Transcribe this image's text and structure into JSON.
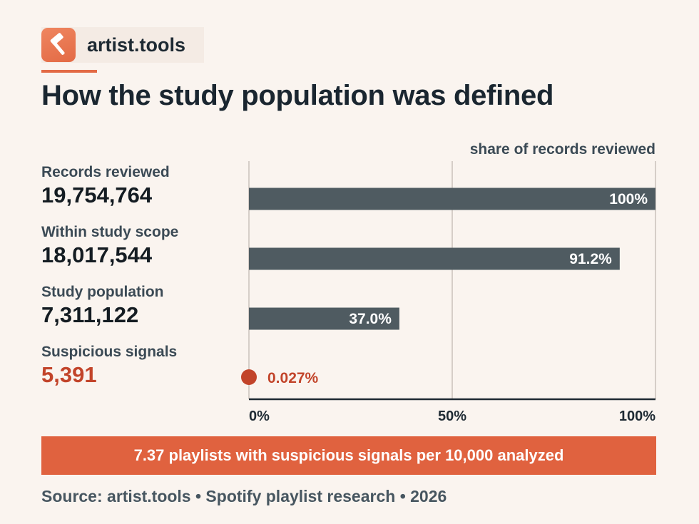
{
  "brand": {
    "name": "artist.tools",
    "logo_icon": "hammer-icon",
    "accent": "#e36a45"
  },
  "title": "How the study population was defined",
  "rows": [
    {
      "label": "Records reviewed",
      "value": "19,754,764"
    },
    {
      "label": "Within study scope",
      "value": "18,017,544"
    },
    {
      "label": "Study population",
      "value": "7,311,122"
    },
    {
      "label": "Suspicious signals",
      "value": "5,391",
      "accent": true
    }
  ],
  "chart_data": {
    "type": "bar",
    "orientation": "horizontal",
    "title": "share of records reviewed",
    "categories": [
      "Records reviewed",
      "Within study scope",
      "Study population",
      "Suspicious signals"
    ],
    "values": [
      100,
      91.2,
      37.0,
      0.027
    ],
    "data_labels": [
      "100%",
      "91.2%",
      "37.0%",
      "0.027%"
    ],
    "xlim": [
      0,
      100
    ],
    "xticks": [
      0,
      50,
      100
    ],
    "xtick_labels": [
      "0%",
      "50%",
      "100%"
    ],
    "grid": true,
    "bar_color": "#4f5b61",
    "highlight_color": "#c2442a",
    "highlight_marker": "dot"
  },
  "banner": {
    "text": "7.37 playlists with suspicious signals per 10,000 analyzed",
    "color": "#e0623f"
  },
  "source": "Source: artist.tools • Spotify playlist research • 2026"
}
